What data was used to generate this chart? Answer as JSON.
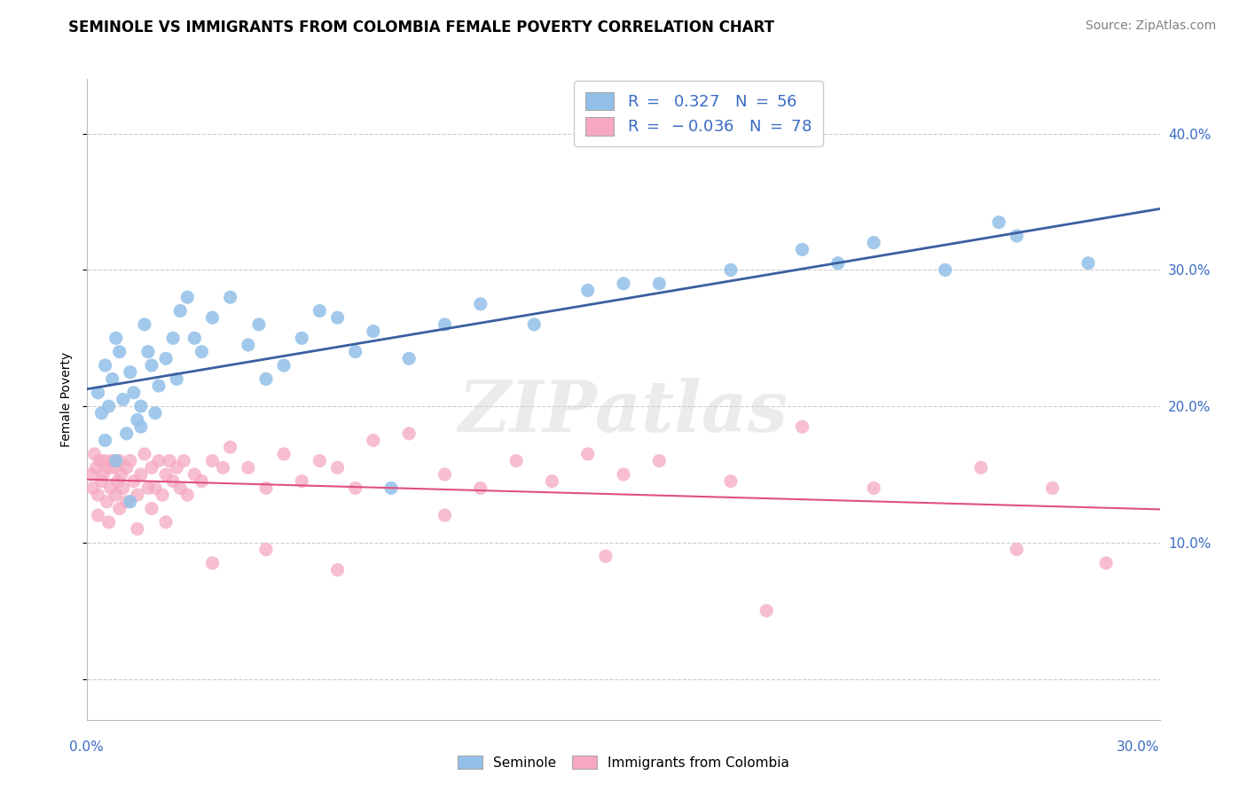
{
  "title": "SEMINOLE VS IMMIGRANTS FROM COLOMBIA FEMALE POVERTY CORRELATION CHART",
  "source_text": "Source: ZipAtlas.com",
  "ylabel": "Female Poverty",
  "watermark": "ZIPatlas",
  "xlim": [
    0.0,
    30.0
  ],
  "ylim": [
    -3.0,
    44.0
  ],
  "seminole_color": "#92c0e8",
  "colombia_color": "#f5a8c0",
  "seminole_line_color": "#3a5fa0",
  "colombia_line_color": "#e05080",
  "legend_text_color": "#3a6bc4",
  "background_color": "#ffffff",
  "grid_color": "#cccccc",
  "title_fontsize": 12,
  "axis_label_fontsize": 10,
  "tick_fontsize": 11,
  "legend_fontsize": 13,
  "source_fontsize": 10,
  "seminole_x": [
    0.3,
    0.4,
    0.5,
    0.6,
    0.7,
    0.8,
    0.9,
    1.0,
    1.1,
    1.2,
    1.3,
    1.4,
    1.5,
    1.6,
    1.7,
    1.8,
    1.9,
    2.0,
    2.2,
    2.4,
    2.6,
    2.8,
    3.0,
    3.5,
    4.0,
    4.5,
    5.0,
    5.5,
    6.0,
    6.5,
    7.0,
    7.5,
    8.0,
    9.0,
    10.0,
    11.0,
    12.5,
    14.0,
    16.0,
    18.0,
    20.0,
    21.0,
    22.0,
    24.0,
    25.5,
    26.0,
    28.0,
    0.5,
    0.8,
    1.2,
    1.5,
    2.5,
    3.2,
    4.8,
    8.5,
    15.0
  ],
  "seminole_y": [
    21.0,
    19.5,
    23.0,
    20.0,
    22.0,
    25.0,
    24.0,
    20.5,
    18.0,
    22.5,
    21.0,
    19.0,
    20.0,
    26.0,
    24.0,
    23.0,
    19.5,
    21.5,
    23.5,
    25.0,
    27.0,
    28.0,
    25.0,
    26.5,
    28.0,
    24.5,
    22.0,
    23.0,
    25.0,
    27.0,
    26.5,
    24.0,
    25.5,
    23.5,
    26.0,
    27.5,
    26.0,
    28.5,
    29.0,
    30.0,
    31.5,
    30.5,
    32.0,
    30.0,
    33.5,
    32.5,
    30.5,
    17.5,
    16.0,
    13.0,
    18.5,
    22.0,
    24.0,
    26.0,
    14.0,
    29.0
  ],
  "colombia_x": [
    0.1,
    0.15,
    0.2,
    0.25,
    0.3,
    0.35,
    0.4,
    0.45,
    0.5,
    0.55,
    0.6,
    0.65,
    0.7,
    0.75,
    0.8,
    0.85,
    0.9,
    0.95,
    1.0,
    1.1,
    1.2,
    1.3,
    1.4,
    1.5,
    1.6,
    1.7,
    1.8,
    1.9,
    2.0,
    2.1,
    2.2,
    2.3,
    2.4,
    2.5,
    2.6,
    2.7,
    2.8,
    3.0,
    3.2,
    3.5,
    3.8,
    4.0,
    4.5,
    5.0,
    5.5,
    6.0,
    6.5,
    7.0,
    7.5,
    8.0,
    9.0,
    10.0,
    11.0,
    12.0,
    13.0,
    14.0,
    15.0,
    16.0,
    18.0,
    20.0,
    22.0,
    25.0,
    27.0,
    0.3,
    0.6,
    0.9,
    1.1,
    1.4,
    1.8,
    2.2,
    3.5,
    5.0,
    7.0,
    10.0,
    14.5,
    19.0,
    26.0,
    28.5
  ],
  "colombia_y": [
    15.0,
    14.0,
    16.5,
    15.5,
    13.5,
    16.0,
    14.5,
    15.0,
    16.0,
    13.0,
    15.5,
    14.0,
    16.0,
    15.5,
    13.5,
    14.5,
    16.0,
    15.0,
    14.0,
    15.5,
    16.0,
    14.5,
    13.5,
    15.0,
    16.5,
    14.0,
    15.5,
    14.0,
    16.0,
    13.5,
    15.0,
    16.0,
    14.5,
    15.5,
    14.0,
    16.0,
    13.5,
    15.0,
    14.5,
    16.0,
    15.5,
    17.0,
    15.5,
    14.0,
    16.5,
    14.5,
    16.0,
    15.5,
    14.0,
    17.5,
    18.0,
    15.0,
    14.0,
    16.0,
    14.5,
    16.5,
    15.0,
    16.0,
    14.5,
    18.5,
    14.0,
    15.5,
    14.0,
    12.0,
    11.5,
    12.5,
    13.0,
    11.0,
    12.5,
    11.5,
    8.5,
    9.5,
    8.0,
    12.0,
    9.0,
    5.0,
    9.5,
    8.5
  ]
}
